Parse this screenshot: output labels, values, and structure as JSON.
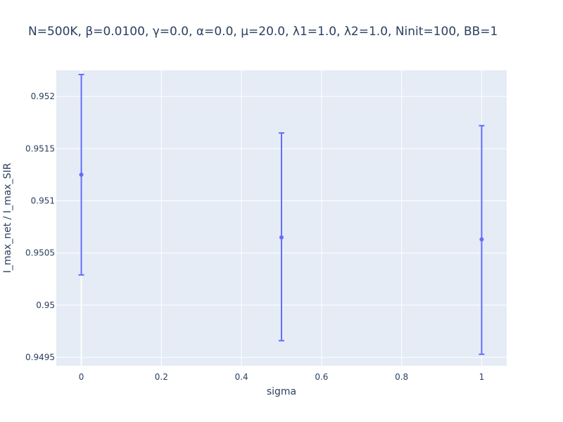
{
  "chart_data": {
    "type": "scatter",
    "title": "N=500K, β=0.0100, γ=0.0, α=0.0, μ=20.0, λ1=1.0, λ2=1.0, Ninit=100, BB=1",
    "xlabel": "sigma",
    "ylabel": "I_max_net / I_max_SIR",
    "xlim": [
      -0.0625,
      1.0625
    ],
    "ylim": [
      0.94942,
      0.95225
    ],
    "x_ticks": [
      0,
      0.2,
      0.4,
      0.6,
      0.8,
      1
    ],
    "x_tick_labels": [
      "0",
      "0.2",
      "0.4",
      "0.6",
      "0.8",
      "1"
    ],
    "y_ticks": [
      0.9495,
      0.95,
      0.9505,
      0.951,
      0.9515,
      0.952
    ],
    "y_tick_labels": [
      "0.9495",
      "0.95",
      "0.9505",
      "0.951",
      "0.9515",
      "0.952"
    ],
    "grid": true,
    "legend": "none",
    "points": [
      {
        "x": 0,
        "y": 0.95125,
        "err_low": 0.95029,
        "err_high": 0.95221
      },
      {
        "x": 0.5,
        "y": 0.95065,
        "err_low": 0.94966,
        "err_high": 0.95165
      },
      {
        "x": 1,
        "y": 0.95063,
        "err_low": 0.94953,
        "err_high": 0.95172
      }
    ],
    "colors": {
      "marker": "#636efa",
      "plot_bg": "#e5ecf6",
      "grid": "#ffffff",
      "text": "#2a3f5f"
    }
  }
}
